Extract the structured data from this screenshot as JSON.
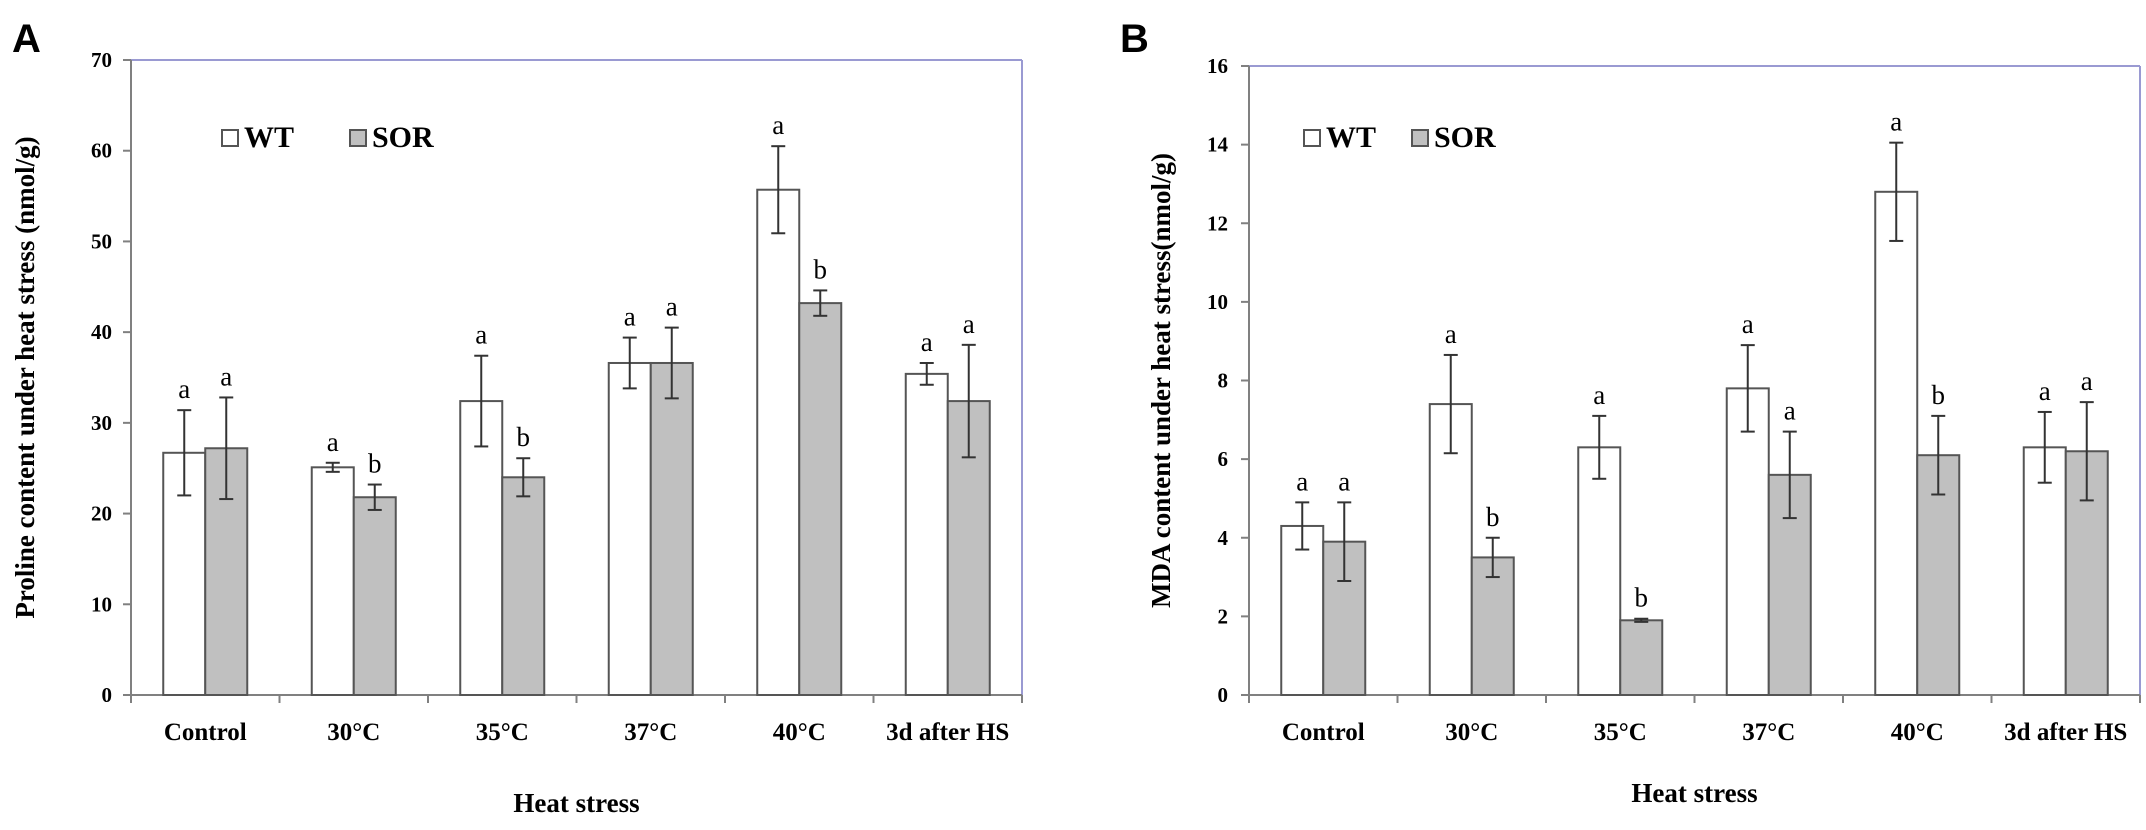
{
  "colors": {
    "wt": "#ffffff",
    "sor": "#c0c0c0",
    "frame": "#9a9ad2",
    "axis": "#808080",
    "bar_stroke": "#555555"
  },
  "chart_data": [
    {
      "panel": "A",
      "type": "bar",
      "title": "",
      "xlabel": "Heat  stress",
      "ylabel": "Proline content under heat stress (nmol/g)",
      "ylim": [
        0,
        70
      ],
      "yticks": [
        "0",
        "10",
        "20",
        "30",
        "40",
        "50",
        "60",
        "70"
      ],
      "ytick_values": [
        0,
        10,
        20,
        30,
        40,
        50,
        60,
        70
      ],
      "legend": {
        "position": "top-left",
        "entries": [
          "WT",
          "SOR"
        ]
      },
      "categories": [
        "Control",
        "30°C",
        "35°C",
        "37°C",
        "40°C",
        "3d after HS"
      ],
      "series": [
        {
          "name": "WT",
          "values": [
            26.7,
            25.1,
            32.4,
            36.6,
            55.7,
            35.4
          ],
          "errors": [
            4.7,
            0.5,
            5.0,
            2.8,
            4.8,
            1.2
          ],
          "labels": [
            "a",
            "a",
            "a",
            "a",
            "a",
            "a"
          ]
        },
        {
          "name": "SOR",
          "values": [
            27.2,
            21.8,
            24.0,
            36.6,
            43.2,
            32.4
          ],
          "errors": [
            5.6,
            1.4,
            2.1,
            3.9,
            1.4,
            6.2
          ],
          "labels": [
            "a",
            "b",
            "b",
            "a",
            "b",
            "a"
          ]
        }
      ]
    },
    {
      "panel": "B",
      "type": "bar",
      "title": "",
      "xlabel": "Heat  stress",
      "ylabel": "MDA content under heat stress(nmol/g)",
      "ylim": [
        0,
        16
      ],
      "yticks": [
        "0",
        "2",
        "4",
        "6",
        "8",
        "10",
        "12",
        "14",
        "16"
      ],
      "ytick_values": [
        0,
        2,
        4,
        6,
        8,
        10,
        12,
        14,
        16
      ],
      "legend": {
        "position": "top-left",
        "entries": [
          "WT",
          "SOR"
        ]
      },
      "categories": [
        "Control",
        "30°C",
        "35°C",
        "37°C",
        "40°C",
        "3d after HS"
      ],
      "series": [
        {
          "name": "WT",
          "values": [
            4.3,
            7.4,
            6.3,
            7.8,
            12.8,
            6.3
          ],
          "errors": [
            0.6,
            1.25,
            0.8,
            1.1,
            1.25,
            0.9
          ],
          "labels": [
            "a",
            "a",
            "a",
            "a",
            "a",
            "a"
          ]
        },
        {
          "name": "SOR",
          "values": [
            3.9,
            3.5,
            1.9,
            5.6,
            6.1,
            6.2
          ],
          "errors": [
            1.0,
            0.5,
            0.04,
            1.1,
            1.0,
            1.25
          ],
          "labels": [
            "a",
            "b",
            "b",
            "a",
            "b",
            "a"
          ]
        }
      ]
    }
  ]
}
